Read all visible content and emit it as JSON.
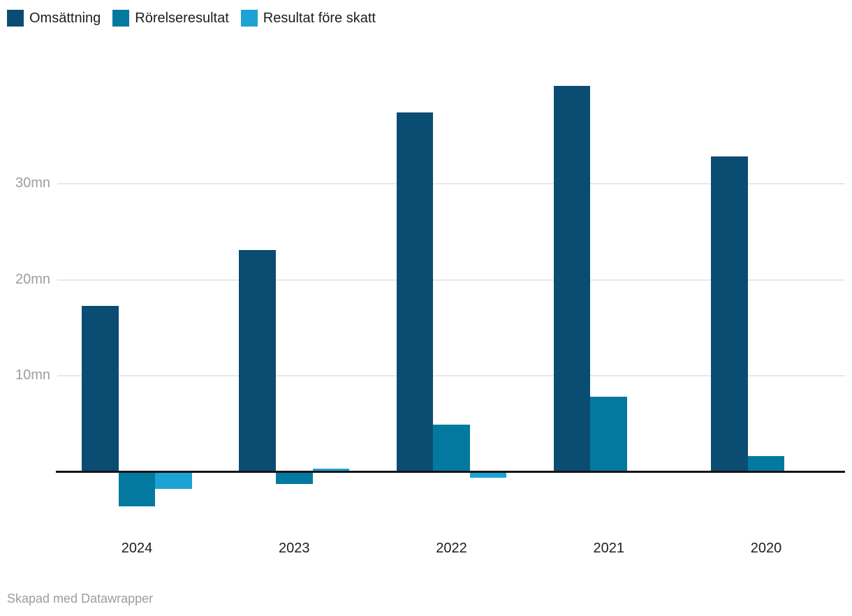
{
  "chart_data": {
    "type": "bar",
    "title": "",
    "categories": [
      "2024",
      "2023",
      "2022",
      "2021",
      "2020"
    ],
    "series": [
      {
        "name": "Omsättning",
        "color": "#0b4d72",
        "values": [
          17.3,
          23.1,
          37.5,
          40.2,
          32.9
        ]
      },
      {
        "name": "Rörelseresultat",
        "color": "#0479a0",
        "values": [
          -3.5,
          -1.2,
          4.9,
          7.8,
          1.6
        ]
      },
      {
        "name": "Resultat före skatt",
        "color": "#1da3d3",
        "values": [
          -1.7,
          0.3,
          -0.5,
          0,
          0
        ]
      }
    ],
    "y_ticks": [
      {
        "label": "10mn",
        "value": 10
      },
      {
        "label": "20mn",
        "value": 20
      },
      {
        "label": "30mn",
        "value": 30
      }
    ],
    "ylim": [
      -5,
      42
    ],
    "unit": "mn",
    "grid": true,
    "legend_position": "top-left",
    "baseline_value": 0
  },
  "footer": {
    "credit": "Skapad med Datawrapper"
  }
}
